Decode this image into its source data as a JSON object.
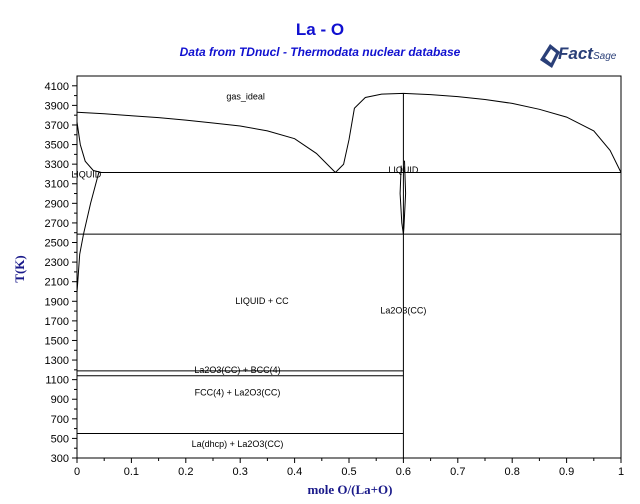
{
  "chart_data": {
    "type": "phase_diagram",
    "title": "La - O",
    "subtitle": "Data from TDnucl - Thermodata nuclear database",
    "logo_text": "FactSage",
    "xlabel": "mole O/(La+O)",
    "ylabel": "T(K)",
    "xlim": [
      0,
      1
    ],
    "ylim": [
      300,
      4200
    ],
    "x_ticks": [
      0,
      0.1,
      0.2,
      0.3,
      0.4,
      0.5,
      0.6,
      0.7,
      0.8,
      0.9,
      1
    ],
    "y_ticks": [
      300,
      500,
      700,
      900,
      1100,
      1300,
      1500,
      1700,
      1900,
      2100,
      2300,
      2500,
      2700,
      2900,
      3100,
      3300,
      3500,
      3700,
      3900,
      4100
    ],
    "regions": [
      {
        "label": "gas_ideal",
        "x": 0.31,
        "y": 3960
      },
      {
        "label": "LIQUID",
        "x": 0.017,
        "y": 3165
      },
      {
        "label": "LIQUID",
        "x": 0.6,
        "y": 3210
      },
      {
        "label": "LIQUID + CC",
        "x": 0.34,
        "y": 1870
      },
      {
        "label": "La2O3(CC)",
        "x": 0.6,
        "y": 1775
      },
      {
        "label": "La2O3(CC) + BCC(4)",
        "x": 0.295,
        "y": 1170
      },
      {
        "label": "FCC(4) + La2O3(CC)",
        "x": 0.295,
        "y": 940
      },
      {
        "label": "La(dhcp) + La2O3(CC)",
        "x": 0.295,
        "y": 410
      }
    ],
    "isotherms": [
      {
        "T": 3215,
        "x_from": 0.04,
        "x_to": 1.0
      },
      {
        "T": 2585,
        "x_from": 0.0,
        "x_to": 1.0
      },
      {
        "T": 1190,
        "x_from": 0.0,
        "x_to": 0.6
      },
      {
        "T": 1140,
        "x_from": 0.0,
        "x_to": 0.6
      },
      {
        "T": 550,
        "x_from": 0.0,
        "x_to": 0.6
      }
    ],
    "phase_boundaries": [
      {
        "name": "gas-liquid boundary (La side)",
        "points": [
          [
            0.0,
            3830
          ],
          [
            0.05,
            3815
          ],
          [
            0.1,
            3795
          ],
          [
            0.15,
            3775
          ],
          [
            0.2,
            3750
          ],
          [
            0.25,
            3720
          ],
          [
            0.3,
            3690
          ],
          [
            0.35,
            3640
          ],
          [
            0.4,
            3560
          ],
          [
            0.44,
            3410
          ],
          [
            0.475,
            3215
          ]
        ]
      },
      {
        "name": "gas-liquid boundary (O side)",
        "points": [
          [
            0.475,
            3215
          ],
          [
            0.49,
            3300
          ],
          [
            0.5,
            3550
          ],
          [
            0.51,
            3870
          ],
          [
            0.53,
            3980
          ],
          [
            0.56,
            4015
          ],
          [
            0.6,
            4022
          ],
          [
            0.65,
            4010
          ],
          [
            0.7,
            3990
          ],
          [
            0.75,
            3960
          ],
          [
            0.8,
            3920
          ],
          [
            0.85,
            3860
          ],
          [
            0.9,
            3780
          ],
          [
            0.95,
            3640
          ],
          [
            0.98,
            3440
          ],
          [
            1.0,
            3215
          ]
        ]
      },
      {
        "name": "liquidus (La side)",
        "points": [
          [
            0.0,
            3730
          ],
          [
            0.006,
            3500
          ],
          [
            0.015,
            3330
          ],
          [
            0.03,
            3235
          ],
          [
            0.045,
            3215
          ]
        ]
      },
      {
        "name": "liquid solubility",
        "points": [
          [
            0.0,
            1990
          ],
          [
            0.005,
            2380
          ],
          [
            0.012,
            2585
          ],
          [
            0.025,
            2900
          ],
          [
            0.04,
            3215
          ]
        ]
      },
      {
        "name": "La2O3 melting",
        "points": [
          [
            0.6,
            4022
          ],
          [
            0.6,
            300
          ]
        ]
      },
      {
        "name": "La2O3 liquid field (left)",
        "points": [
          [
            0.596,
            3285
          ],
          [
            0.594,
            3000
          ],
          [
            0.597,
            2700
          ],
          [
            0.6,
            2585
          ]
        ]
      },
      {
        "name": "La2O3 liquid field (right)",
        "points": [
          [
            0.602,
            3335
          ],
          [
            0.604,
            3000
          ],
          [
            0.601,
            2650
          ],
          [
            0.6,
            2585
          ]
        ]
      }
    ],
    "grid": false
  }
}
